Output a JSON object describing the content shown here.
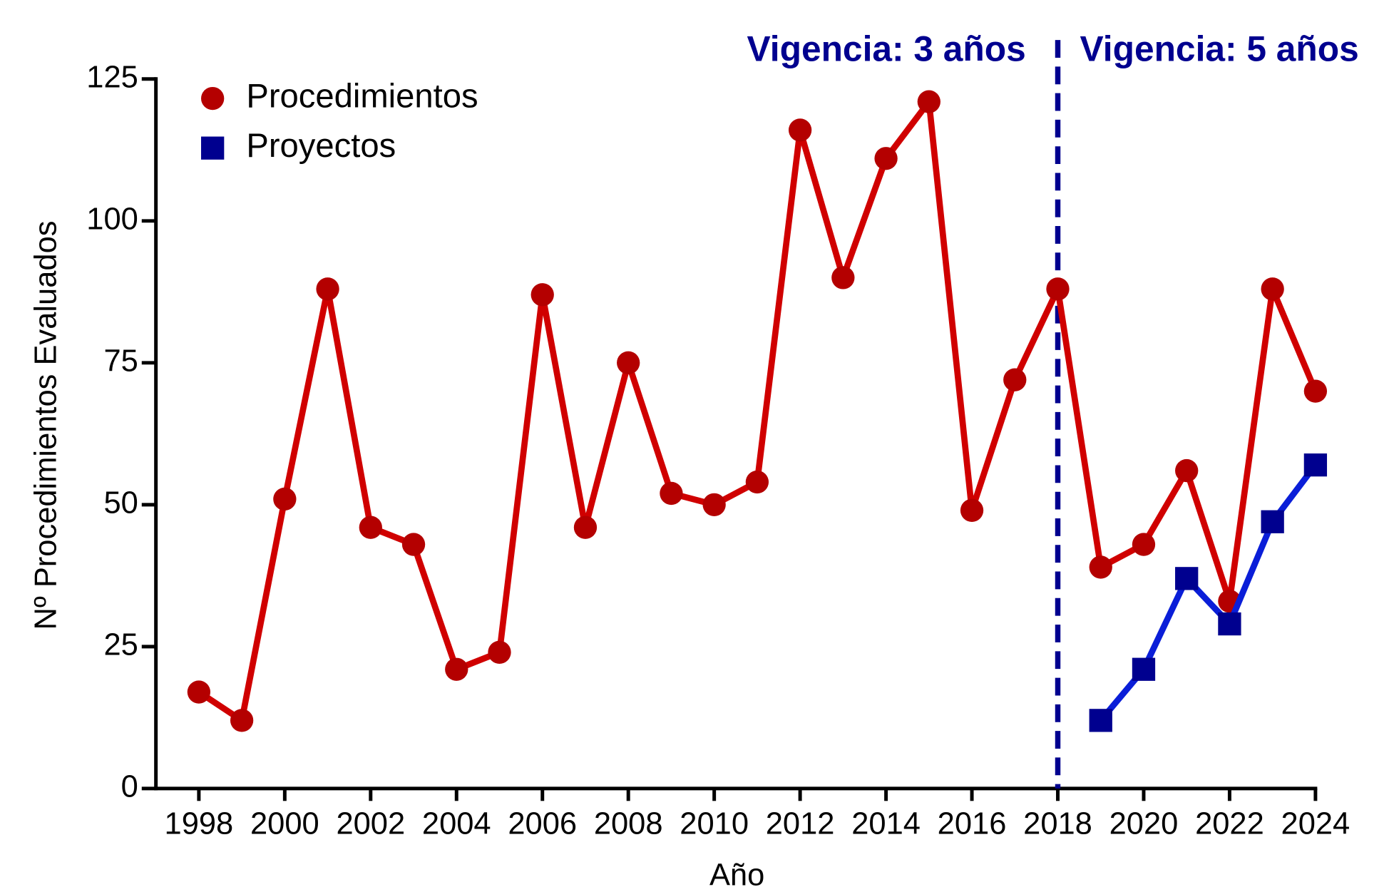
{
  "chart_data": {
    "type": "line",
    "x_label": "Año",
    "y_label": "Nº Procedimientos Evaluados",
    "x": [
      1998,
      1999,
      2000,
      2001,
      2002,
      2003,
      2004,
      2005,
      2006,
      2007,
      2008,
      2009,
      2010,
      2011,
      2012,
      2013,
      2014,
      2015,
      2016,
      2017,
      2018,
      2019,
      2020,
      2021,
      2022,
      2023,
      2024
    ],
    "series": [
      {
        "name": "Procedimientos",
        "color": "#b40000",
        "line_color": "#d00000",
        "marker": "circle",
        "values": [
          17,
          12,
          51,
          88,
          46,
          43,
          21,
          24,
          87,
          46,
          75,
          52,
          50,
          54,
          116,
          90,
          111,
          121,
          49,
          72,
          88,
          39,
          43,
          56,
          33,
          88,
          70
        ]
      },
      {
        "name": "Proyectos",
        "color": "#00008f",
        "line_color": "#0a1ed8",
        "marker": "square",
        "values": [
          null,
          null,
          null,
          null,
          null,
          null,
          null,
          null,
          null,
          null,
          null,
          null,
          null,
          null,
          null,
          null,
          null,
          null,
          null,
          null,
          null,
          12,
          21,
          37,
          29,
          47,
          57
        ]
      }
    ],
    "xlim": [
      1997,
      2024
    ],
    "xticks": [
      1998,
      2000,
      2002,
      2004,
      2006,
      2008,
      2010,
      2012,
      2014,
      2016,
      2018,
      2020,
      2022,
      2024
    ],
    "ylim": [
      0,
      125
    ],
    "yticks": [
      0,
      25,
      50,
      75,
      100,
      125
    ],
    "vline": {
      "x": 2018,
      "color": "#00008f",
      "style": "dashed"
    },
    "annotations": [
      "Vigencia: 3 años",
      "Vigencia: 5 años"
    ],
    "legend": "upper left"
  }
}
